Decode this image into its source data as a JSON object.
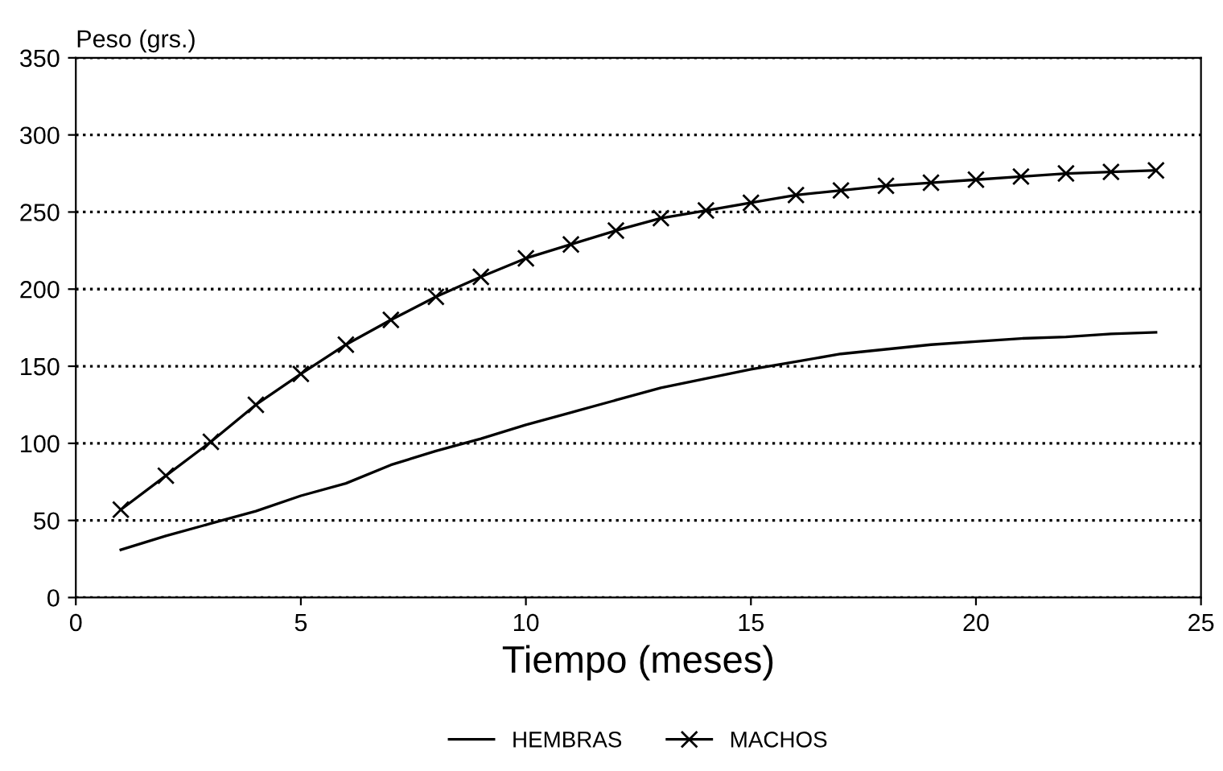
{
  "chart_data": {
    "type": "line",
    "ylabel": "Peso (grs.)",
    "xlabel": "Tiempo (meses)",
    "x": [
      1,
      2,
      3,
      4,
      5,
      6,
      7,
      8,
      9,
      10,
      11,
      12,
      13,
      14,
      15,
      16,
      17,
      18,
      19,
      20,
      21,
      22,
      23,
      24
    ],
    "series": [
      {
        "name": "HEMBRAS",
        "color": "#000000",
        "marker": "none",
        "values": [
          31,
          40,
          48,
          56,
          66,
          74,
          86,
          95,
          103,
          112,
          120,
          128,
          136,
          142,
          148,
          153,
          158,
          161,
          164,
          166,
          168,
          169,
          171,
          172
        ]
      },
      {
        "name": "MACHOS",
        "color": "#000000",
        "marker": "cross",
        "values": [
          57,
          79,
          101,
          125,
          145,
          164,
          180,
          195,
          208,
          220,
          229,
          238,
          246,
          251,
          256,
          261,
          264,
          267,
          269,
          271,
          273,
          275,
          276,
          277
        ]
      }
    ],
    "xlim": [
      0,
      25
    ],
    "xticks": [
      0,
      5,
      10,
      15,
      20,
      25
    ],
    "ylim": [
      0,
      350
    ],
    "yticks": [
      0,
      50,
      100,
      150,
      200,
      250,
      300,
      350
    ],
    "grid": "y",
    "legend": "bottom",
    "line_style": "solid"
  }
}
